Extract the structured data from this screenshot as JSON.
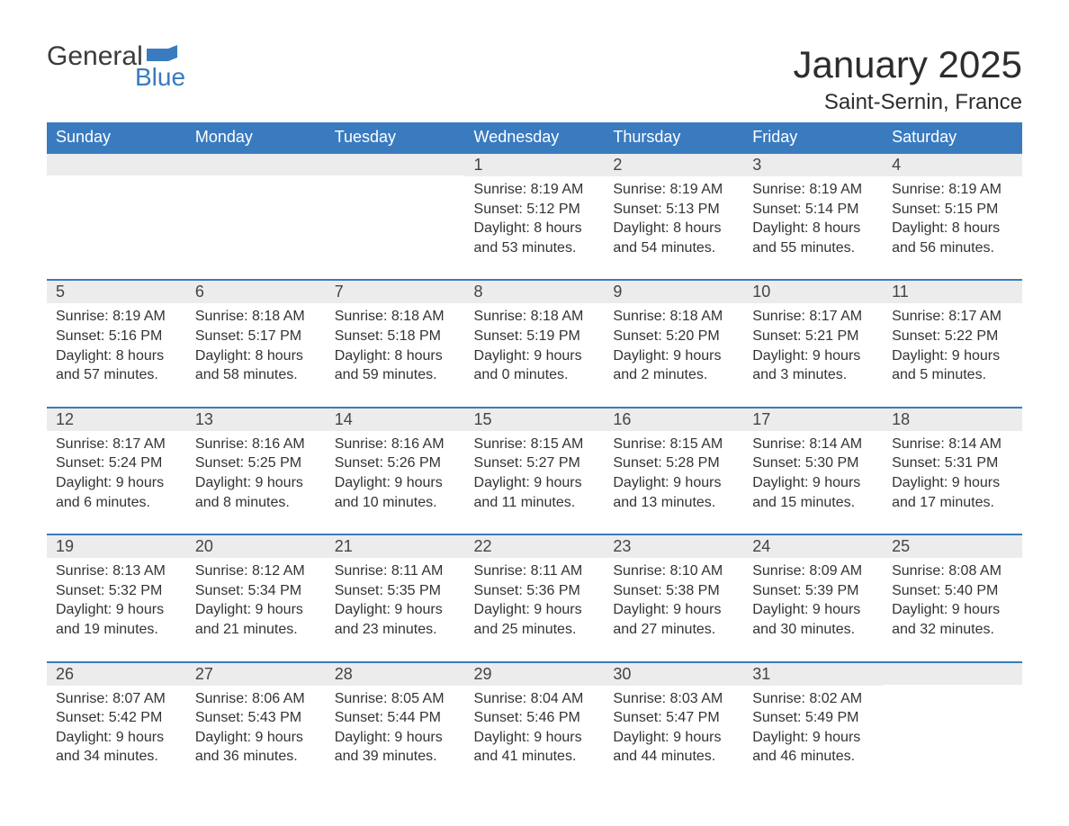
{
  "brand": {
    "text1": "General",
    "text2": "Blue",
    "flag_color": "#3a7bbf"
  },
  "title": "January 2025",
  "location": "Saint-Sernin, France",
  "colors": {
    "header_bg": "#3a7bbf",
    "header_text": "#ffffff",
    "daynum_bg": "#ececec",
    "row_border": "#3a7bbf",
    "body_text": "#333333"
  },
  "fonts": {
    "title_size_pt": 32,
    "location_size_pt": 18,
    "dayhead_size_pt": 14,
    "body_size_pt": 12
  },
  "layout": {
    "columns": 7,
    "rows": 5
  },
  "day_headers": [
    "Sunday",
    "Monday",
    "Tuesday",
    "Wednesday",
    "Thursday",
    "Friday",
    "Saturday"
  ],
  "weeks": [
    [
      null,
      null,
      null,
      {
        "n": "1",
        "sunrise": "Sunrise: 8:19 AM",
        "sunset": "Sunset: 5:12 PM",
        "d1": "Daylight: 8 hours",
        "d2": "and 53 minutes."
      },
      {
        "n": "2",
        "sunrise": "Sunrise: 8:19 AM",
        "sunset": "Sunset: 5:13 PM",
        "d1": "Daylight: 8 hours",
        "d2": "and 54 minutes."
      },
      {
        "n": "3",
        "sunrise": "Sunrise: 8:19 AM",
        "sunset": "Sunset: 5:14 PM",
        "d1": "Daylight: 8 hours",
        "d2": "and 55 minutes."
      },
      {
        "n": "4",
        "sunrise": "Sunrise: 8:19 AM",
        "sunset": "Sunset: 5:15 PM",
        "d1": "Daylight: 8 hours",
        "d2": "and 56 minutes."
      }
    ],
    [
      {
        "n": "5",
        "sunrise": "Sunrise: 8:19 AM",
        "sunset": "Sunset: 5:16 PM",
        "d1": "Daylight: 8 hours",
        "d2": "and 57 minutes."
      },
      {
        "n": "6",
        "sunrise": "Sunrise: 8:18 AM",
        "sunset": "Sunset: 5:17 PM",
        "d1": "Daylight: 8 hours",
        "d2": "and 58 minutes."
      },
      {
        "n": "7",
        "sunrise": "Sunrise: 8:18 AM",
        "sunset": "Sunset: 5:18 PM",
        "d1": "Daylight: 8 hours",
        "d2": "and 59 minutes."
      },
      {
        "n": "8",
        "sunrise": "Sunrise: 8:18 AM",
        "sunset": "Sunset: 5:19 PM",
        "d1": "Daylight: 9 hours",
        "d2": "and 0 minutes."
      },
      {
        "n": "9",
        "sunrise": "Sunrise: 8:18 AM",
        "sunset": "Sunset: 5:20 PM",
        "d1": "Daylight: 9 hours",
        "d2": "and 2 minutes."
      },
      {
        "n": "10",
        "sunrise": "Sunrise: 8:17 AM",
        "sunset": "Sunset: 5:21 PM",
        "d1": "Daylight: 9 hours",
        "d2": "and 3 minutes."
      },
      {
        "n": "11",
        "sunrise": "Sunrise: 8:17 AM",
        "sunset": "Sunset: 5:22 PM",
        "d1": "Daylight: 9 hours",
        "d2": "and 5 minutes."
      }
    ],
    [
      {
        "n": "12",
        "sunrise": "Sunrise: 8:17 AM",
        "sunset": "Sunset: 5:24 PM",
        "d1": "Daylight: 9 hours",
        "d2": "and 6 minutes."
      },
      {
        "n": "13",
        "sunrise": "Sunrise: 8:16 AM",
        "sunset": "Sunset: 5:25 PM",
        "d1": "Daylight: 9 hours",
        "d2": "and 8 minutes."
      },
      {
        "n": "14",
        "sunrise": "Sunrise: 8:16 AM",
        "sunset": "Sunset: 5:26 PM",
        "d1": "Daylight: 9 hours",
        "d2": "and 10 minutes."
      },
      {
        "n": "15",
        "sunrise": "Sunrise: 8:15 AM",
        "sunset": "Sunset: 5:27 PM",
        "d1": "Daylight: 9 hours",
        "d2": "and 11 minutes."
      },
      {
        "n": "16",
        "sunrise": "Sunrise: 8:15 AM",
        "sunset": "Sunset: 5:28 PM",
        "d1": "Daylight: 9 hours",
        "d2": "and 13 minutes."
      },
      {
        "n": "17",
        "sunrise": "Sunrise: 8:14 AM",
        "sunset": "Sunset: 5:30 PM",
        "d1": "Daylight: 9 hours",
        "d2": "and 15 minutes."
      },
      {
        "n": "18",
        "sunrise": "Sunrise: 8:14 AM",
        "sunset": "Sunset: 5:31 PM",
        "d1": "Daylight: 9 hours",
        "d2": "and 17 minutes."
      }
    ],
    [
      {
        "n": "19",
        "sunrise": "Sunrise: 8:13 AM",
        "sunset": "Sunset: 5:32 PM",
        "d1": "Daylight: 9 hours",
        "d2": "and 19 minutes."
      },
      {
        "n": "20",
        "sunrise": "Sunrise: 8:12 AM",
        "sunset": "Sunset: 5:34 PM",
        "d1": "Daylight: 9 hours",
        "d2": "and 21 minutes."
      },
      {
        "n": "21",
        "sunrise": "Sunrise: 8:11 AM",
        "sunset": "Sunset: 5:35 PM",
        "d1": "Daylight: 9 hours",
        "d2": "and 23 minutes."
      },
      {
        "n": "22",
        "sunrise": "Sunrise: 8:11 AM",
        "sunset": "Sunset: 5:36 PM",
        "d1": "Daylight: 9 hours",
        "d2": "and 25 minutes."
      },
      {
        "n": "23",
        "sunrise": "Sunrise: 8:10 AM",
        "sunset": "Sunset: 5:38 PM",
        "d1": "Daylight: 9 hours",
        "d2": "and 27 minutes."
      },
      {
        "n": "24",
        "sunrise": "Sunrise: 8:09 AM",
        "sunset": "Sunset: 5:39 PM",
        "d1": "Daylight: 9 hours",
        "d2": "and 30 minutes."
      },
      {
        "n": "25",
        "sunrise": "Sunrise: 8:08 AM",
        "sunset": "Sunset: 5:40 PM",
        "d1": "Daylight: 9 hours",
        "d2": "and 32 minutes."
      }
    ],
    [
      {
        "n": "26",
        "sunrise": "Sunrise: 8:07 AM",
        "sunset": "Sunset: 5:42 PM",
        "d1": "Daylight: 9 hours",
        "d2": "and 34 minutes."
      },
      {
        "n": "27",
        "sunrise": "Sunrise: 8:06 AM",
        "sunset": "Sunset: 5:43 PM",
        "d1": "Daylight: 9 hours",
        "d2": "and 36 minutes."
      },
      {
        "n": "28",
        "sunrise": "Sunrise: 8:05 AM",
        "sunset": "Sunset: 5:44 PM",
        "d1": "Daylight: 9 hours",
        "d2": "and 39 minutes."
      },
      {
        "n": "29",
        "sunrise": "Sunrise: 8:04 AM",
        "sunset": "Sunset: 5:46 PM",
        "d1": "Daylight: 9 hours",
        "d2": "and 41 minutes."
      },
      {
        "n": "30",
        "sunrise": "Sunrise: 8:03 AM",
        "sunset": "Sunset: 5:47 PM",
        "d1": "Daylight: 9 hours",
        "d2": "and 44 minutes."
      },
      {
        "n": "31",
        "sunrise": "Sunrise: 8:02 AM",
        "sunset": "Sunset: 5:49 PM",
        "d1": "Daylight: 9 hours",
        "d2": "and 46 minutes."
      },
      null
    ]
  ]
}
